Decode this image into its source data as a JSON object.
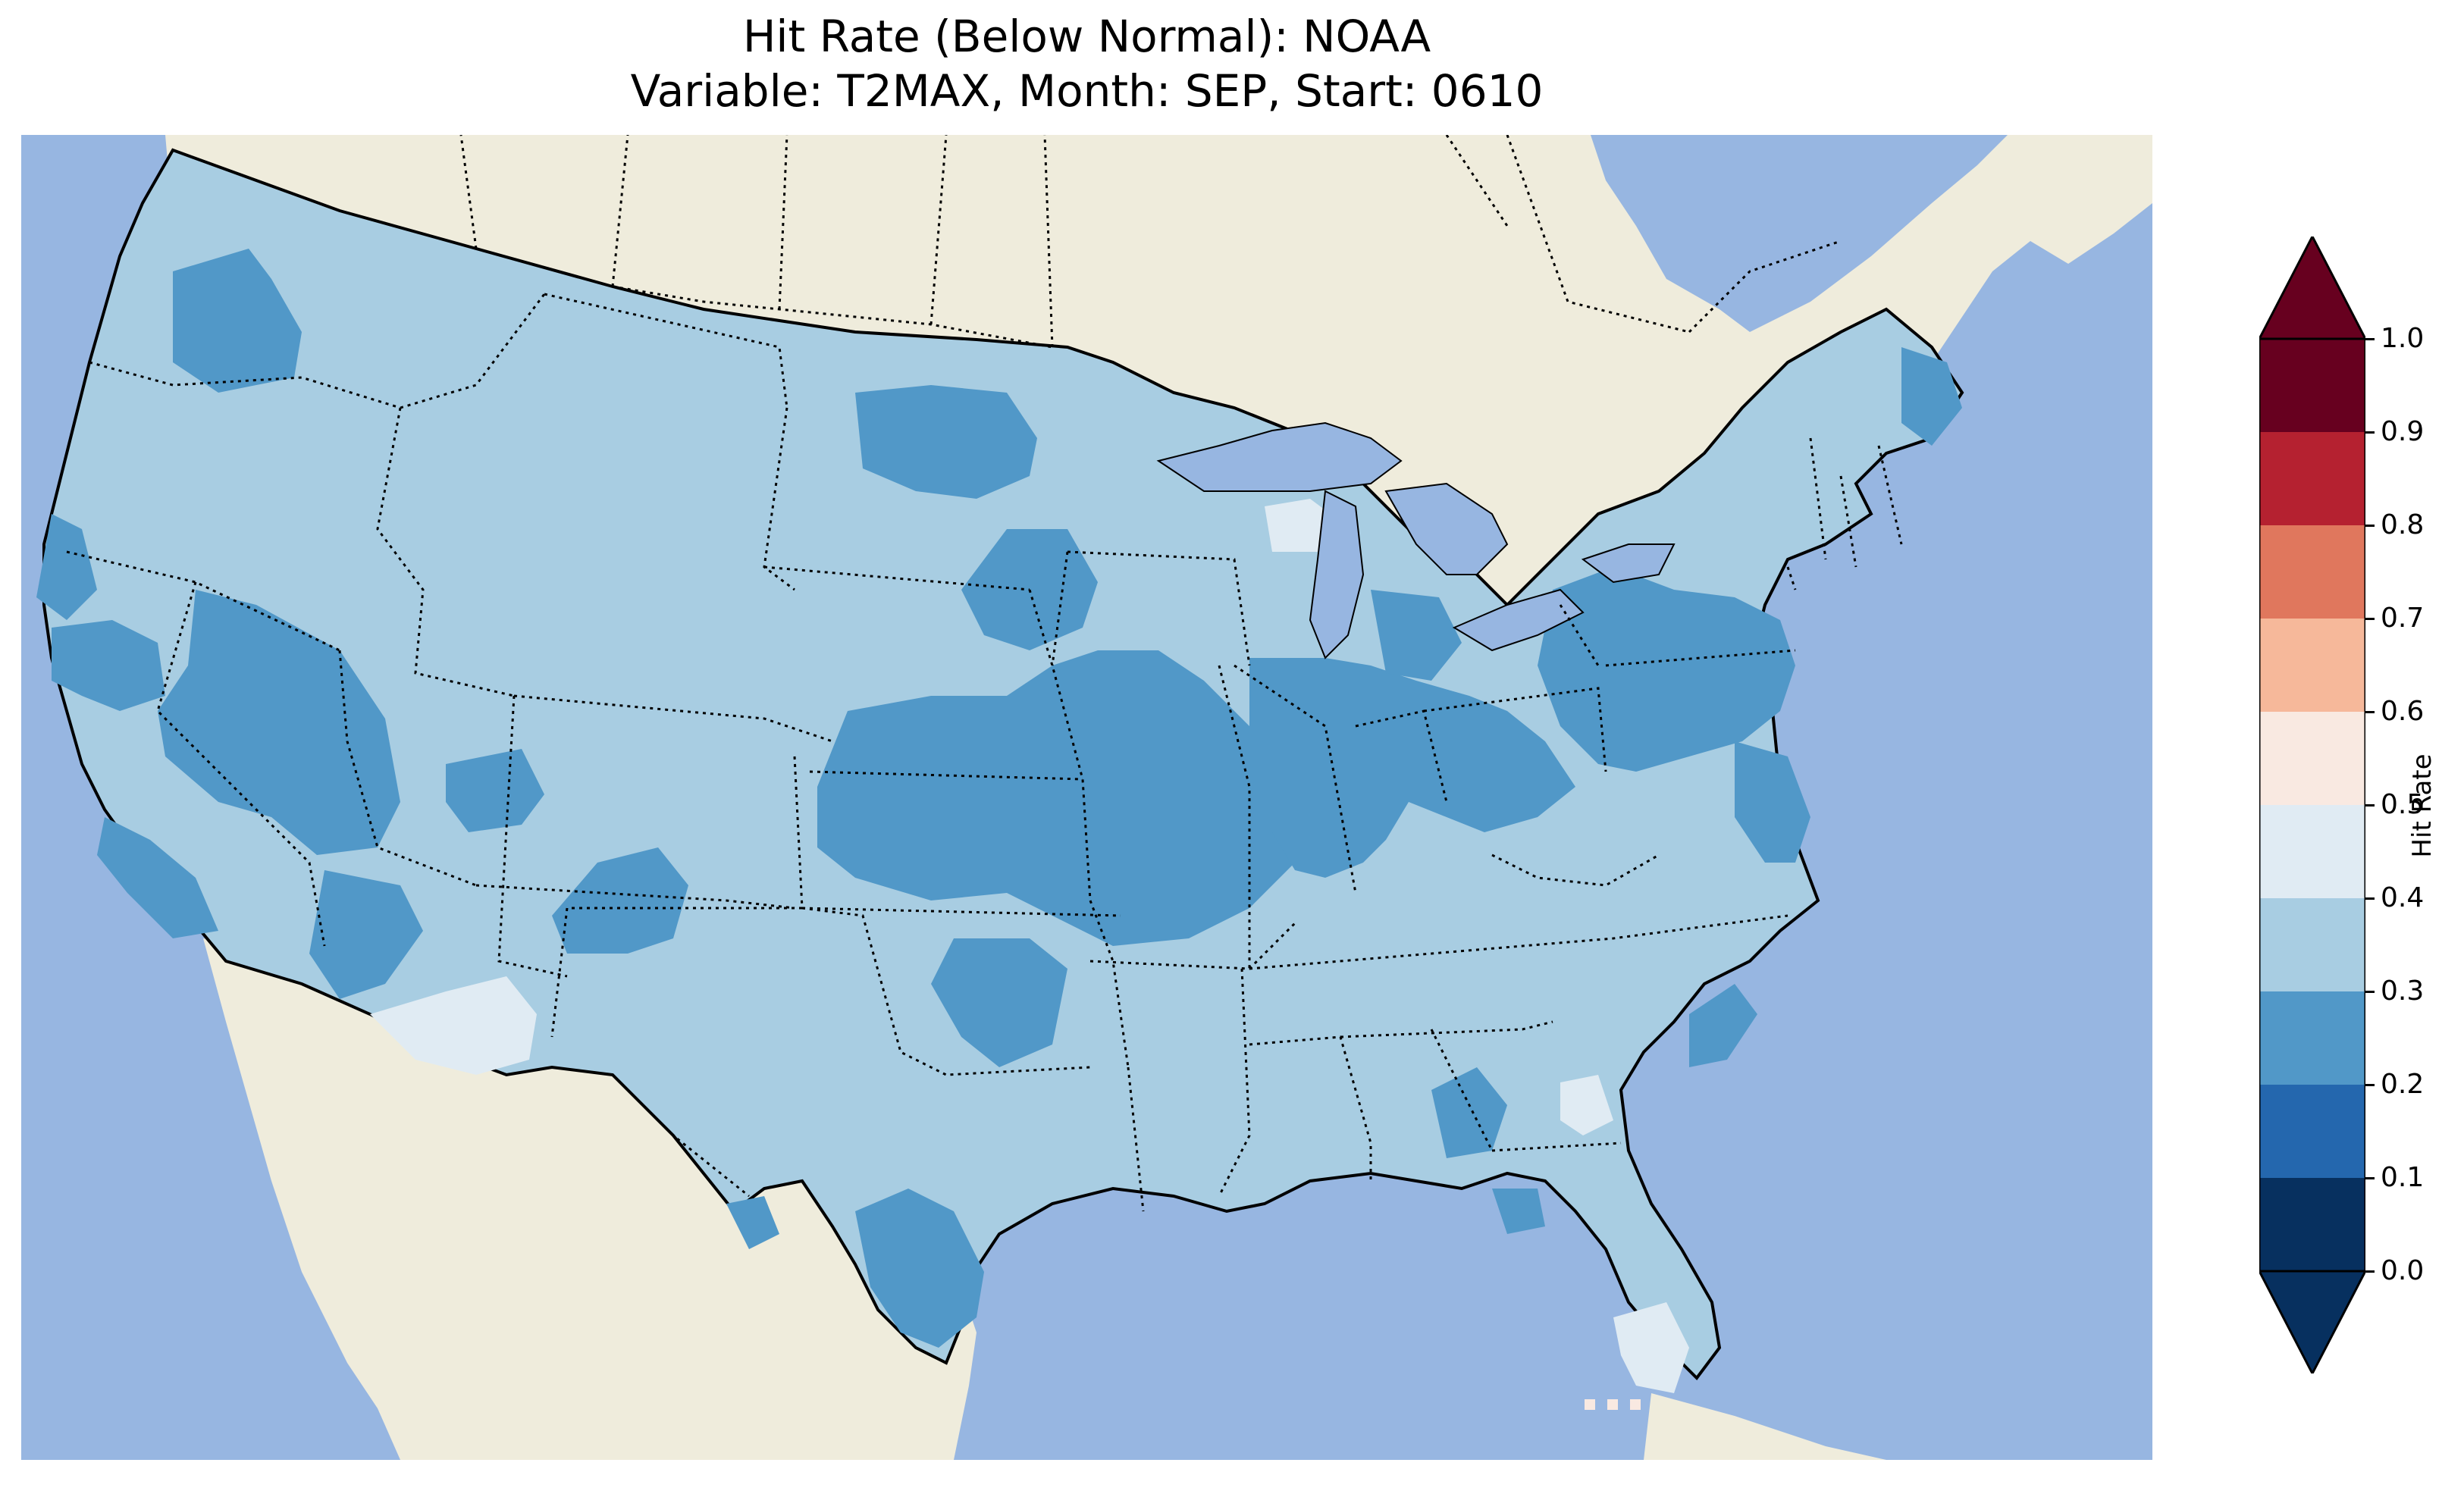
{
  "title": {
    "line1": "Hit Rate (Below Normal): NOAA",
    "line2": "Variable: T2MAX, Month: SEP, Start: 0610"
  },
  "map": {
    "type": "choropleth-map",
    "region": "Contiguous United States",
    "ocean_color": "#97b6e1",
    "land_color": "#efecdc",
    "lake_color": "#97b6e1",
    "border_style": "dotted"
  },
  "colorbar": {
    "label": "Hit Rate",
    "ticks": [
      "0.0",
      "0.1",
      "0.2",
      "0.3",
      "0.4",
      "0.5",
      "0.6",
      "0.7",
      "0.8",
      "0.9",
      "1.0"
    ],
    "extend": "both",
    "colors": [
      "#053061",
      "#2166ac",
      "#4393c3",
      "#92c5de",
      "#d1e5f0",
      "#f7f7f7",
      "#fddbc7",
      "#f4a582",
      "#d6604d",
      "#b2182b",
      "#67001f"
    ],
    "bin_colors": [
      "#07305f",
      "#2467ae",
      "#5198c8",
      "#a8cde2",
      "#e0ebf3",
      "#f9e9e1",
      "#f6b89a",
      "#e0775d",
      "#b52130",
      "#67001f"
    ]
  },
  "chart_data": {
    "type": "heatmap",
    "title": "Hit Rate (Below Normal): NOAA",
    "subtitle": "Variable: T2MAX, Month: SEP, Start: 0610",
    "colorbar_label": "Hit Rate",
    "value_range": [
      0.0,
      1.0
    ],
    "bin_edges": [
      0.0,
      0.1,
      0.2,
      0.3,
      0.4,
      0.5,
      0.6,
      0.7,
      0.8,
      0.9,
      1.0
    ],
    "regions": [
      {
        "area": "Background (most of CONUS)",
        "bin": [
          0.3,
          0.4
        ]
      },
      {
        "area": "Pacific Northwest coast, Washington",
        "bin": [
          0.2,
          0.3
        ]
      },
      {
        "area": "Northern California coast",
        "bin": [
          0.2,
          0.3
        ]
      },
      {
        "area": "Nevada / eastern California",
        "bin": [
          0.2,
          0.3
        ]
      },
      {
        "area": "Southern California coast",
        "bin": [
          0.2,
          0.3
        ]
      },
      {
        "area": "Western Arizona",
        "bin": [
          0.2,
          0.3
        ]
      },
      {
        "area": "Central Utah",
        "bin": [
          0.2,
          0.3
        ]
      },
      {
        "area": "Northern New Mexico",
        "bin": [
          0.2,
          0.3
        ]
      },
      {
        "area": "North Dakota",
        "bin": [
          0.2,
          0.3
        ]
      },
      {
        "area": "Eastern South Dakota / southern Minnesota",
        "bin": [
          0.2,
          0.3
        ]
      },
      {
        "area": "Kansas, Nebraska, Iowa, Missouri",
        "bin": [
          0.2,
          0.3
        ]
      },
      {
        "area": "Illinois, Indiana, Ohio",
        "bin": [
          0.2,
          0.3
        ]
      },
      {
        "area": "Pennsylvania / New York / New Jersey",
        "bin": [
          0.2,
          0.3
        ]
      },
      {
        "area": "Western Oklahoma / Texas panhandle",
        "bin": [
          0.2,
          0.3
        ]
      },
      {
        "area": "South Texas / Texas coast",
        "bin": [
          0.2,
          0.3
        ]
      },
      {
        "area": "Alabama (small area)",
        "bin": [
          0.2,
          0.3
        ]
      },
      {
        "area": "Carolina coast",
        "bin": [
          0.2,
          0.3
        ]
      },
      {
        "area": "Delmarva / Chesapeake",
        "bin": [
          0.2,
          0.3
        ]
      },
      {
        "area": "Maine",
        "bin": [
          0.2,
          0.3
        ]
      },
      {
        "area": "Southern Arizona",
        "bin": [
          0.4,
          0.5
        ]
      },
      {
        "area": "Northern Wisconsin / Upper Michigan",
        "bin": [
          0.4,
          0.5
        ]
      },
      {
        "area": "Western South Carolina",
        "bin": [
          0.4,
          0.5
        ]
      },
      {
        "area": "South Florida",
        "bin": [
          0.4,
          0.5
        ]
      },
      {
        "area": "Florida Keys (points)",
        "bin": [
          0.5,
          0.6
        ]
      }
    ]
  }
}
